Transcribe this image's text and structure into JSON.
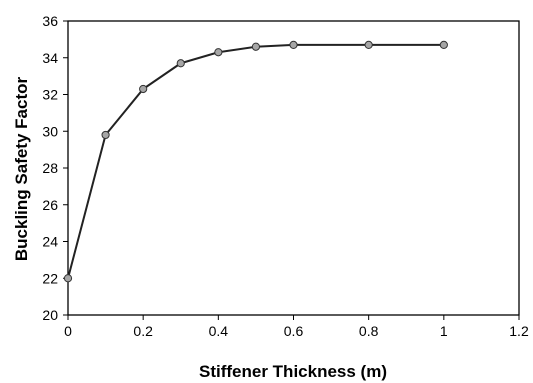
{
  "chart_data": {
    "type": "line",
    "title": "",
    "xlabel": "Stiffener Thickness (m)",
    "ylabel": "Buckling Safety Factor",
    "xlim": [
      0,
      1.2
    ],
    "ylim": [
      20,
      36
    ],
    "xticks": [
      0,
      0.2,
      0.4,
      0.6,
      0.8,
      1,
      1.2
    ],
    "xtick_labels": [
      "0",
      "0.2",
      "0.4",
      "0.6",
      "0.8",
      "1",
      "1.2"
    ],
    "yticks": [
      20,
      22,
      24,
      26,
      28,
      30,
      32,
      34,
      36
    ],
    "ytick_labels": [
      "20",
      "22",
      "24",
      "26",
      "28",
      "30",
      "32",
      "34",
      "36"
    ],
    "grid": false,
    "series": [
      {
        "x": [
          0,
          0.1,
          0.2,
          0.3,
          0.4,
          0.5,
          0.6,
          0.8,
          1.0
        ],
        "y": [
          22.0,
          29.8,
          32.3,
          33.7,
          34.3,
          34.6,
          34.7,
          34.7,
          34.7
        ],
        "line_color": "#222222",
        "marker": "circle",
        "marker_fill": "#a6a6a6",
        "marker_edge": "#333333"
      }
    ]
  }
}
